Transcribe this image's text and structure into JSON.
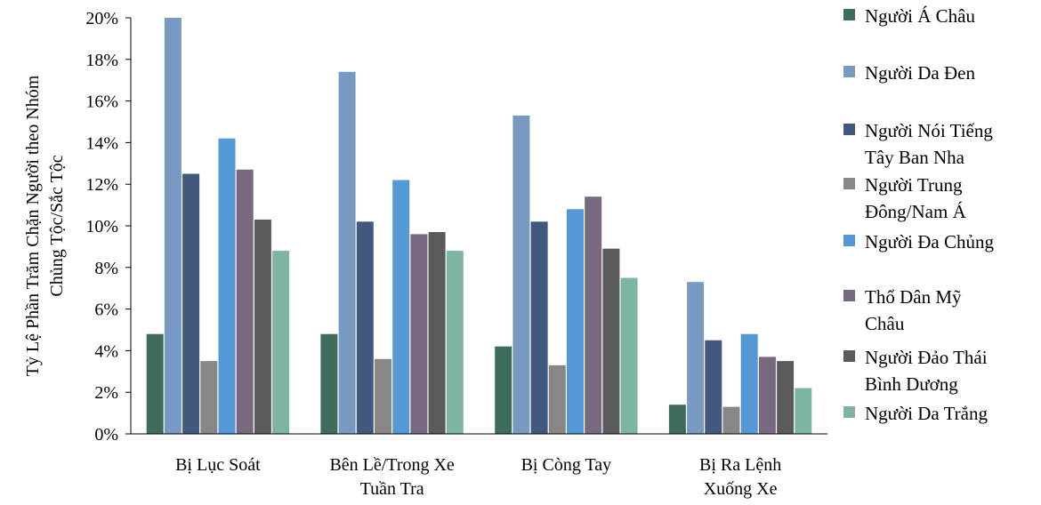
{
  "chart_data": {
    "type": "bar",
    "title": "",
    "ylabel": "Tỷ Lệ Phần Trăm Chặn Người theo Nhóm Chủng Tộc/Sắc Tộc",
    "ylabel_lines": [
      "Tỷ Lệ Phần Trăm Chặn Người theo Nhóm",
      "Chủng Tộc/Sắc Tộc"
    ],
    "xlabel": "",
    "ylim": [
      0,
      20
    ],
    "ytick_values": [
      0,
      2,
      4,
      6,
      8,
      10,
      12,
      14,
      16,
      18,
      20
    ],
    "ytick_labels": [
      "0%",
      "2%",
      "4%",
      "6%",
      "8%",
      "10%",
      "12%",
      "14%",
      "16%",
      "18%",
      "20%"
    ],
    "grid": false,
    "legend_position": "right",
    "categories": [
      {
        "label": "Bị Lục Soát",
        "lines": [
          "Bị Lục Soát"
        ]
      },
      {
        "label": "Bên Lề/Trong Xe Tuần Tra",
        "lines": [
          "Bên Lề/Trong Xe",
          "Tuần Tra"
        ]
      },
      {
        "label": "Bị Còng Tay",
        "lines": [
          "Bị Còng Tay"
        ]
      },
      {
        "label": "Bị Ra Lệnh Xuống Xe",
        "lines": [
          "Bị Ra Lệnh",
          "Xuống Xe"
        ]
      }
    ],
    "series": [
      {
        "name": "Người Á Châu",
        "name_lines": [
          "Người Á Châu"
        ],
        "color": "#3e6b5a",
        "values": [
          4.8,
          4.8,
          4.2,
          1.4
        ]
      },
      {
        "name": "Người Da Đen",
        "name_lines": [
          "Người Da Đen"
        ],
        "color": "#7799c2",
        "values": [
          20.0,
          17.4,
          15.3,
          7.3
        ]
      },
      {
        "name": "Người Nói Tiếng Tây Ban Nha",
        "name_lines": [
          "Người Nói Tiếng",
          "Tây Ban Nha"
        ],
        "color": "#43587e",
        "values": [
          12.5,
          10.2,
          10.2,
          4.5
        ]
      },
      {
        "name": "Người Trung Đông/Nam Á",
        "name_lines": [
          "Người Trung",
          "Đông/Nam Á"
        ],
        "color": "#878787",
        "values": [
          3.5,
          3.6,
          3.3,
          1.3
        ]
      },
      {
        "name": "Người Đa Chủng",
        "name_lines": [
          "Người Đa Chủng"
        ],
        "color": "#5499d6",
        "values": [
          14.2,
          12.2,
          10.8,
          4.8
        ]
      },
      {
        "name": "Thổ Dân Mỹ Châu",
        "name_lines": [
          "Thổ Dân Mỹ",
          "Châu"
        ],
        "color": "#786880",
        "values": [
          12.7,
          9.6,
          11.4,
          3.7
        ]
      },
      {
        "name": "Người Đảo Thái Bình Dương",
        "name_lines": [
          "Người Đảo Thái",
          "Bình Dương"
        ],
        "color": "#5a5a5a",
        "values": [
          10.3,
          9.7,
          8.9,
          3.5
        ]
      },
      {
        "name": "Người Da Trắng",
        "name_lines": [
          "Người Da Trắng"
        ],
        "color": "#7eb5a0",
        "values": [
          8.8,
          8.8,
          7.5,
          2.2
        ]
      }
    ]
  }
}
